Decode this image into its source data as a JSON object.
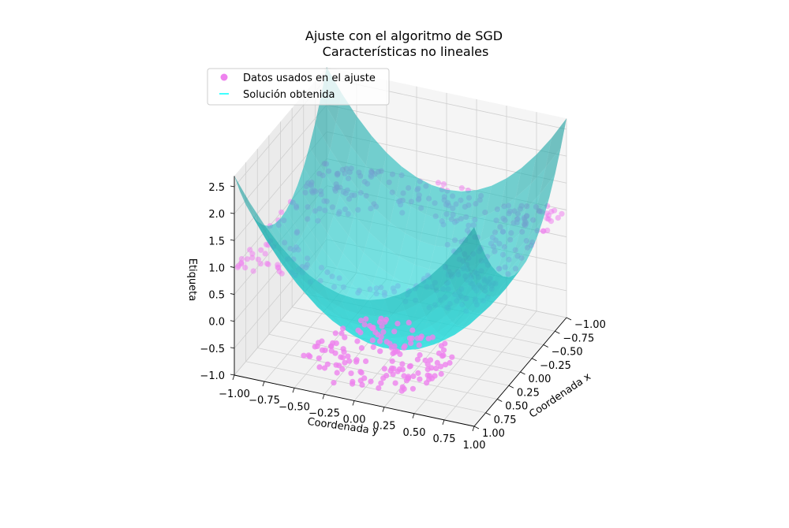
{
  "chart_data": {
    "type": "scatter",
    "projection": "3d",
    "title": "Ajuste con el algoritmo de SGD",
    "subtitle": "Características no lineales",
    "xlabel": "Coordenada x",
    "ylabel": "Coordenada y",
    "zlabel": "Etiqueta",
    "xlim": [
      -1,
      1
    ],
    "ylim": [
      -1,
      1
    ],
    "zlim": [
      -1,
      2.7
    ],
    "x_ticks": [
      "1.00",
      "0.75",
      "0.50",
      "0.25",
      "0.00",
      "−0.25",
      "−0.50",
      "−0.75",
      "−1.00"
    ],
    "y_ticks": [
      "−1.00",
      "−0.75",
      "−0.50",
      "−0.25",
      "0.00",
      "0.25",
      "0.50",
      "0.75",
      "1.00"
    ],
    "z_ticks": [
      "−1.0",
      "−0.5",
      "0.0",
      "0.5",
      "1.0",
      "1.5",
      "2.0",
      "2.5"
    ],
    "grid": true,
    "legend": {
      "placement": "top-left",
      "entries": [
        {
          "label": "Datos usados en el ajuste",
          "marker": "circle",
          "color": "#ee82ee"
        },
        {
          "label": "Solución obtenida",
          "marker": "line",
          "color": "#00ffff"
        }
      ]
    },
    "colors": {
      "points": "#ee82ee",
      "surface": "#1ed2d2",
      "surface_edge": "#00ffff"
    },
    "series": [
      {
        "name": "Datos usados en el ajuste",
        "labels": [
          1,
          -1
        ],
        "description_values": {
          "label_inside_ellipse": -1,
          "label_outside_ellipse": 1
        }
      },
      {
        "name": "Solución obtenida",
        "surface": "paraboloid",
        "z_min": -0.9,
        "z_max": 2.7
      }
    ]
  }
}
